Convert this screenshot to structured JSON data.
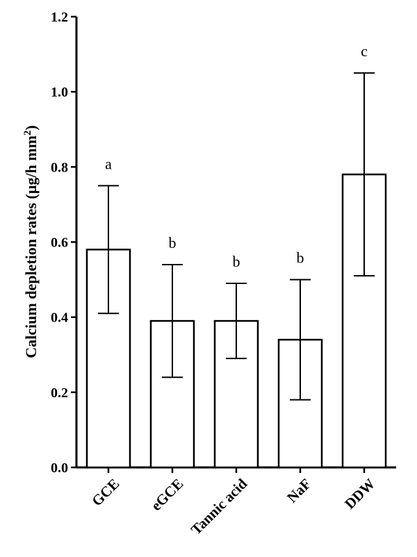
{
  "chart_data": {
    "type": "bar",
    "title": "",
    "xlabel": "",
    "ylabel": "Calcium depletion rates (µg/h mm",
    "ylabel_superscript": "2",
    "ylabel_suffix": ")",
    "ylim": [
      0,
      1.2
    ],
    "yticks": [
      "0.0",
      "0.2",
      "0.4",
      "0.6",
      "0.8",
      "1.0",
      "1.2"
    ],
    "categories": [
      "GCE",
      "eGCE",
      "Tannic acid",
      "NaF",
      "DDW"
    ],
    "values": [
      0.58,
      0.39,
      0.39,
      0.34,
      0.78
    ],
    "error_low": [
      0.41,
      0.24,
      0.29,
      0.18,
      0.51
    ],
    "error_high": [
      0.75,
      0.54,
      0.49,
      0.5,
      1.05
    ],
    "significance_letters": [
      "a",
      "b",
      "b",
      "b",
      "c"
    ],
    "grid": false,
    "legend": "none"
  }
}
